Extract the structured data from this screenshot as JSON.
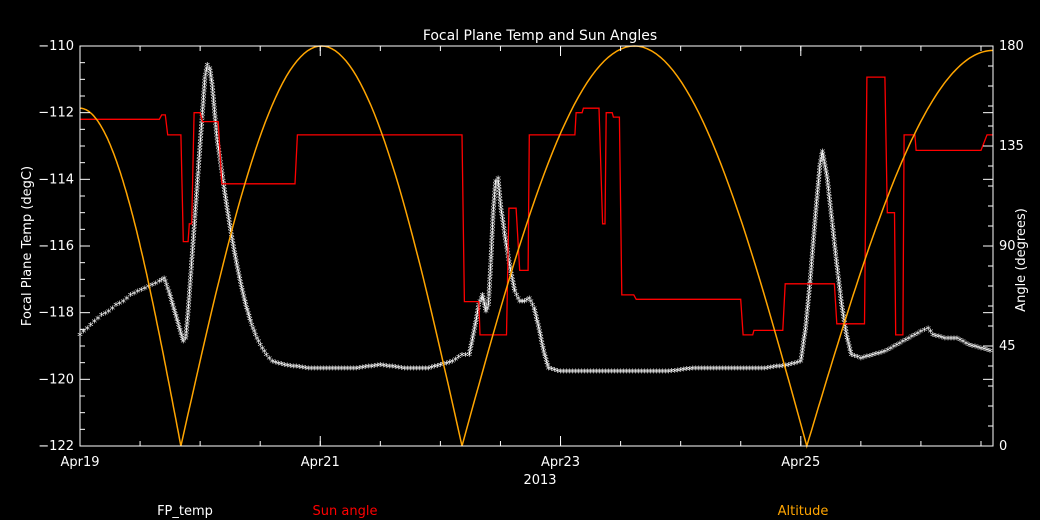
{
  "chart_data": {
    "type": "line",
    "title": "Focal Plane Temp and Sun Angles",
    "xlabel": "2013",
    "ylabel_left": "Focal Plane Temp (degC)",
    "ylabel_right": "Angle (degrees)",
    "x_ticks": [
      {
        "day": 19,
        "label": "Apr19"
      },
      {
        "day": 21,
        "label": "Apr21"
      },
      {
        "day": 23,
        "label": "Apr23"
      },
      {
        "day": 25,
        "label": "Apr25"
      }
    ],
    "xlim": [
      19.0,
      26.6
    ],
    "ylim_left": [
      -122,
      -110
    ],
    "ylim_right": [
      0,
      180
    ],
    "y_ticks_left": [
      "-122",
      "-120",
      "-118",
      "-116",
      "-114",
      "-112",
      "-110"
    ],
    "y_ticks_right": [
      "0",
      "45",
      "90",
      "135",
      "180"
    ],
    "grid": false,
    "legend": [
      {
        "name": "FP_temp",
        "color": "#ffffff"
      },
      {
        "name": "Sun angle",
        "color": "#ff0000"
      },
      {
        "name": "Altitude",
        "color": "#ffa500"
      }
    ],
    "series": [
      {
        "name": "FP_temp",
        "axis": "left",
        "color": "#ffffff",
        "marker": "asterisk",
        "points": [
          [
            19.0,
            -118.7
          ],
          [
            19.06,
            -118.5
          ],
          [
            19.12,
            -118.3
          ],
          [
            19.18,
            -118.1
          ],
          [
            19.24,
            -118.0
          ],
          [
            19.3,
            -117.8
          ],
          [
            19.36,
            -117.7
          ],
          [
            19.42,
            -117.5
          ],
          [
            19.48,
            -117.4
          ],
          [
            19.54,
            -117.3
          ],
          [
            19.6,
            -117.2
          ],
          [
            19.66,
            -117.1
          ],
          [
            19.7,
            -117.0
          ],
          [
            19.74,
            -117.4
          ],
          [
            19.78,
            -117.9
          ],
          [
            19.82,
            -118.4
          ],
          [
            19.86,
            -118.9
          ],
          [
            19.88,
            -118.8
          ],
          [
            19.9,
            -118.0
          ],
          [
            19.92,
            -117.0
          ],
          [
            19.94,
            -116.0
          ],
          [
            19.96,
            -115.0
          ],
          [
            19.98,
            -114.0
          ],
          [
            20.0,
            -113.0
          ],
          [
            20.02,
            -112.0
          ],
          [
            20.04,
            -111.0
          ],
          [
            20.06,
            -110.6
          ],
          [
            20.08,
            -110.7
          ],
          [
            20.1,
            -111.2
          ],
          [
            20.12,
            -112.0
          ],
          [
            20.14,
            -112.8
          ],
          [
            20.18,
            -113.8
          ],
          [
            20.22,
            -114.8
          ],
          [
            20.26,
            -115.7
          ],
          [
            20.3,
            -116.5
          ],
          [
            20.34,
            -117.2
          ],
          [
            20.38,
            -117.8
          ],
          [
            20.42,
            -118.3
          ],
          [
            20.46,
            -118.7
          ],
          [
            20.5,
            -119.0
          ],
          [
            20.55,
            -119.3
          ],
          [
            20.6,
            -119.5
          ],
          [
            20.7,
            -119.6
          ],
          [
            20.9,
            -119.7
          ],
          [
            21.1,
            -119.7
          ],
          [
            21.3,
            -119.7
          ],
          [
            21.5,
            -119.6
          ],
          [
            21.7,
            -119.7
          ],
          [
            21.9,
            -119.7
          ],
          [
            22.0,
            -119.6
          ],
          [
            22.1,
            -119.5
          ],
          [
            22.18,
            -119.3
          ],
          [
            22.24,
            -119.3
          ],
          [
            22.28,
            -118.6
          ],
          [
            22.32,
            -117.8
          ],
          [
            22.35,
            -117.5
          ],
          [
            22.38,
            -118.0
          ],
          [
            22.4,
            -117.8
          ],
          [
            22.42,
            -116.5
          ],
          [
            22.44,
            -115.0
          ],
          [
            22.46,
            -114.1
          ],
          [
            22.48,
            -114.0
          ],
          [
            22.5,
            -114.8
          ],
          [
            22.54,
            -115.8
          ],
          [
            22.58,
            -116.7
          ],
          [
            22.62,
            -117.4
          ],
          [
            22.66,
            -117.7
          ],
          [
            22.7,
            -117.7
          ],
          [
            22.74,
            -117.6
          ],
          [
            22.78,
            -117.9
          ],
          [
            22.82,
            -118.5
          ],
          [
            22.86,
            -119.2
          ],
          [
            22.9,
            -119.7
          ],
          [
            23.0,
            -119.8
          ],
          [
            23.3,
            -119.8
          ],
          [
            23.6,
            -119.8
          ],
          [
            23.9,
            -119.8
          ],
          [
            24.1,
            -119.7
          ],
          [
            24.3,
            -119.7
          ],
          [
            24.5,
            -119.7
          ],
          [
            24.7,
            -119.7
          ],
          [
            24.9,
            -119.6
          ],
          [
            25.0,
            -119.5
          ],
          [
            25.04,
            -118.5
          ],
          [
            25.08,
            -117.0
          ],
          [
            25.12,
            -115.2
          ],
          [
            25.16,
            -113.6
          ],
          [
            25.18,
            -113.2
          ],
          [
            25.22,
            -114.0
          ],
          [
            25.26,
            -115.3
          ],
          [
            25.3,
            -116.6
          ],
          [
            25.34,
            -117.8
          ],
          [
            25.38,
            -118.7
          ],
          [
            25.42,
            -119.3
          ],
          [
            25.5,
            -119.4
          ],
          [
            25.6,
            -119.3
          ],
          [
            25.7,
            -119.2
          ],
          [
            25.8,
            -119.0
          ],
          [
            25.9,
            -118.8
          ],
          [
            26.0,
            -118.6
          ],
          [
            26.06,
            -118.5
          ],
          [
            26.1,
            -118.7
          ],
          [
            26.2,
            -118.8
          ],
          [
            26.3,
            -118.8
          ],
          [
            26.4,
            -119.0
          ],
          [
            26.5,
            -119.1
          ],
          [
            26.6,
            -119.2
          ]
        ]
      },
      {
        "name": "Sun angle",
        "axis": "right",
        "color": "#ff0000",
        "marker": "step",
        "points": [
          [
            19.0,
            147
          ],
          [
            19.66,
            147
          ],
          [
            19.68,
            149
          ],
          [
            19.71,
            149
          ],
          [
            19.73,
            140
          ],
          [
            19.84,
            140
          ],
          [
            19.86,
            92
          ],
          [
            19.9,
            92
          ],
          [
            19.91,
            100
          ],
          [
            19.93,
            100
          ],
          [
            19.95,
            150
          ],
          [
            20.0,
            150
          ],
          [
            20.02,
            146
          ],
          [
            20.1,
            146
          ],
          [
            20.12,
            146
          ],
          [
            20.15,
            146
          ],
          [
            20.18,
            118
          ],
          [
            20.79,
            118
          ],
          [
            20.81,
            140
          ],
          [
            21.18,
            140
          ],
          [
            21.2,
            140
          ],
          [
            22.18,
            140
          ],
          [
            22.2,
            65
          ],
          [
            22.2,
            65
          ],
          [
            22.32,
            65
          ],
          [
            22.33,
            50
          ],
          [
            22.55,
            50
          ],
          [
            22.57,
            107
          ],
          [
            22.62,
            107
          ],
          [
            22.63,
            107
          ],
          [
            22.66,
            79
          ],
          [
            22.73,
            79
          ],
          [
            22.74,
            140
          ],
          [
            23.12,
            140
          ],
          [
            23.13,
            150
          ],
          [
            23.18,
            150
          ],
          [
            23.19,
            152
          ],
          [
            23.3,
            152
          ],
          [
            23.32,
            152
          ],
          [
            23.35,
            100
          ],
          [
            23.37,
            100
          ],
          [
            23.38,
            150
          ],
          [
            23.43,
            150
          ],
          [
            23.44,
            148
          ],
          [
            23.49,
            148
          ],
          [
            23.51,
            68
          ],
          [
            23.61,
            68
          ],
          [
            23.63,
            66
          ],
          [
            24.5,
            66
          ],
          [
            24.52,
            50
          ],
          [
            24.6,
            50
          ],
          [
            24.61,
            52
          ],
          [
            24.85,
            52
          ],
          [
            24.87,
            73
          ],
          [
            25.28,
            73
          ],
          [
            25.3,
            55
          ],
          [
            25.53,
            55
          ],
          [
            25.55,
            166
          ],
          [
            25.7,
            166
          ],
          [
            25.72,
            105
          ],
          [
            25.78,
            105
          ],
          [
            25.79,
            50
          ],
          [
            25.85,
            50
          ],
          [
            25.86,
            140
          ],
          [
            25.95,
            140
          ],
          [
            25.96,
            133
          ],
          [
            26.5,
            133
          ],
          [
            26.55,
            140
          ],
          [
            26.6,
            140
          ]
        ]
      },
      {
        "name": "Altitude",
        "axis": "right",
        "color": "#ffa500",
        "marker": "line",
        "arches": [
          {
            "start": 19.0,
            "end": 19.84,
            "start_val": 152,
            "end_val": 0
          },
          {
            "start": 19.84,
            "end": 22.18,
            "peak": 180
          },
          {
            "start": 22.18,
            "end": 25.05,
            "peak": 180
          },
          {
            "start": 25.05,
            "end": 26.6,
            "start_val": 0,
            "end_val": 178
          }
        ]
      }
    ]
  }
}
